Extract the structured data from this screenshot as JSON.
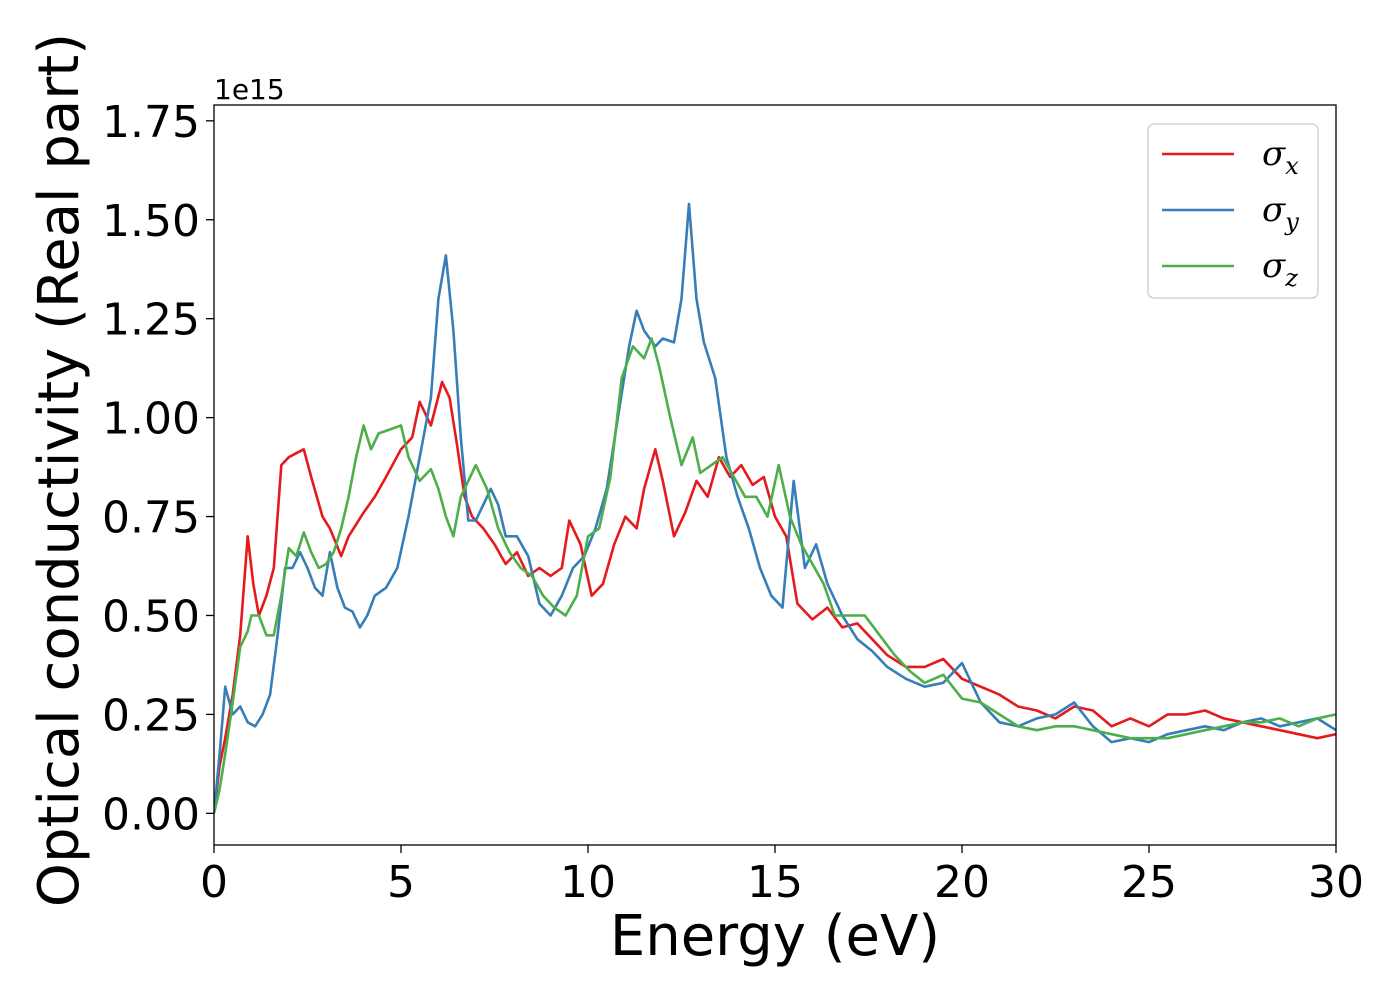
{
  "chart_data": {
    "type": "line",
    "xlabel": "Energy (eV)",
    "ylabel": "Optical conductivity (Real part)",
    "y_offset_text": "1e15",
    "xlim": [
      0,
      30
    ],
    "ylim": [
      -0.08,
      1.79
    ],
    "xticks": [
      0,
      5,
      10,
      15,
      20,
      25,
      30
    ],
    "xtick_labels": [
      "0",
      "5",
      "10",
      "15",
      "20",
      "25",
      "30"
    ],
    "yticks": [
      0.0,
      0.25,
      0.5,
      0.75,
      1.0,
      1.25,
      1.5,
      1.75
    ],
    "ytick_labels": [
      "0.00",
      "0.25",
      "0.50",
      "0.75",
      "1.00",
      "1.25",
      "1.50",
      "1.75"
    ],
    "grid": false,
    "legend_position": "top-right",
    "series": [
      {
        "name": "σx",
        "legend_base": "σ",
        "legend_sub": "x",
        "color": "#e41a1c",
        "x": [
          0,
          0.15,
          0.3,
          0.5,
          0.7,
          0.9,
          1.05,
          1.2,
          1.4,
          1.6,
          1.8,
          2.0,
          2.2,
          2.4,
          2.6,
          2.9,
          3.1,
          3.4,
          3.6,
          3.8,
          4.0,
          4.3,
          4.6,
          5.0,
          5.3,
          5.5,
          5.8,
          6.1,
          6.3,
          6.5,
          6.7,
          6.9,
          7.2,
          7.5,
          7.8,
          8.1,
          8.4,
          8.7,
          9.0,
          9.3,
          9.5,
          9.8,
          10.1,
          10.4,
          10.7,
          11.0,
          11.3,
          11.5,
          11.8,
          12.0,
          12.3,
          12.6,
          12.9,
          13.2,
          13.5,
          13.8,
          14.1,
          14.4,
          14.7,
          15.0,
          15.3,
          15.6,
          16.0,
          16.4,
          16.8,
          17.2,
          17.6,
          18.0,
          18.5,
          19.0,
          19.5,
          20.0,
          20.5,
          21.0,
          21.5,
          22.0,
          22.5,
          23.0,
          23.5,
          24.0,
          24.5,
          25.0,
          25.5,
          26.0,
          26.5,
          27.0,
          27.5,
          28.0,
          28.5,
          29.0,
          29.5,
          30.0
        ],
        "y": [
          0.0,
          0.12,
          0.19,
          0.3,
          0.45,
          0.7,
          0.58,
          0.5,
          0.55,
          0.62,
          0.88,
          0.9,
          0.91,
          0.92,
          0.85,
          0.75,
          0.72,
          0.65,
          0.7,
          0.73,
          0.76,
          0.8,
          0.85,
          0.92,
          0.95,
          1.04,
          0.98,
          1.09,
          1.05,
          0.93,
          0.8,
          0.75,
          0.72,
          0.68,
          0.63,
          0.66,
          0.6,
          0.62,
          0.6,
          0.62,
          0.74,
          0.68,
          0.55,
          0.58,
          0.68,
          0.75,
          0.72,
          0.82,
          0.92,
          0.84,
          0.7,
          0.76,
          0.84,
          0.8,
          0.9,
          0.85,
          0.88,
          0.83,
          0.85,
          0.75,
          0.7,
          0.53,
          0.49,
          0.52,
          0.47,
          0.48,
          0.44,
          0.4,
          0.37,
          0.37,
          0.39,
          0.34,
          0.32,
          0.3,
          0.27,
          0.26,
          0.24,
          0.27,
          0.26,
          0.22,
          0.24,
          0.22,
          0.25,
          0.25,
          0.26,
          0.24,
          0.23,
          0.22,
          0.21,
          0.2,
          0.19,
          0.2
        ]
      },
      {
        "name": "σy",
        "legend_base": "σ",
        "legend_sub": "y",
        "color": "#377eb8",
        "x": [
          0,
          0.15,
          0.3,
          0.5,
          0.7,
          0.9,
          1.1,
          1.3,
          1.5,
          1.7,
          1.9,
          2.1,
          2.3,
          2.5,
          2.7,
          2.9,
          3.1,
          3.3,
          3.5,
          3.7,
          3.9,
          4.1,
          4.3,
          4.6,
          4.9,
          5.2,
          5.5,
          5.8,
          6.0,
          6.2,
          6.4,
          6.6,
          6.8,
          7.0,
          7.2,
          7.4,
          7.6,
          7.8,
          8.1,
          8.4,
          8.7,
          9.0,
          9.3,
          9.6,
          9.9,
          10.2,
          10.5,
          10.8,
          11.1,
          11.3,
          11.5,
          11.8,
          12.0,
          12.3,
          12.5,
          12.7,
          12.9,
          13.1,
          13.4,
          13.7,
          14.0,
          14.3,
          14.6,
          14.9,
          15.2,
          15.5,
          15.8,
          16.1,
          16.4,
          16.8,
          17.2,
          17.6,
          18.0,
          18.5,
          19.0,
          19.5,
          20.0,
          20.5,
          21.0,
          21.5,
          22.0,
          22.5,
          23.0,
          23.5,
          24.0,
          24.5,
          25.0,
          25.5,
          26.0,
          26.5,
          27.0,
          27.5,
          28.0,
          28.5,
          29.0,
          29.5,
          30.0
        ],
        "y": [
          0.0,
          0.15,
          0.32,
          0.25,
          0.27,
          0.23,
          0.22,
          0.25,
          0.3,
          0.45,
          0.62,
          0.62,
          0.66,
          0.62,
          0.57,
          0.55,
          0.66,
          0.57,
          0.52,
          0.51,
          0.47,
          0.5,
          0.55,
          0.57,
          0.62,
          0.75,
          0.9,
          1.05,
          1.3,
          1.41,
          1.22,
          0.95,
          0.74,
          0.74,
          0.78,
          0.82,
          0.78,
          0.7,
          0.7,
          0.65,
          0.53,
          0.5,
          0.55,
          0.62,
          0.65,
          0.72,
          0.82,
          1.0,
          1.18,
          1.27,
          1.22,
          1.18,
          1.2,
          1.19,
          1.3,
          1.54,
          1.3,
          1.19,
          1.1,
          0.9,
          0.8,
          0.72,
          0.62,
          0.55,
          0.52,
          0.84,
          0.62,
          0.68,
          0.58,
          0.5,
          0.44,
          0.41,
          0.37,
          0.34,
          0.32,
          0.33,
          0.38,
          0.28,
          0.23,
          0.22,
          0.24,
          0.25,
          0.28,
          0.22,
          0.18,
          0.19,
          0.18,
          0.2,
          0.21,
          0.22,
          0.21,
          0.23,
          0.24,
          0.22,
          0.23,
          0.24,
          0.21
        ]
      },
      {
        "name": "σz",
        "legend_base": "σ",
        "legend_sub": "z",
        "color": "#4daf4a",
        "x": [
          0,
          0.15,
          0.3,
          0.5,
          0.7,
          0.9,
          1.0,
          1.2,
          1.4,
          1.6,
          1.8,
          2.0,
          2.2,
          2.4,
          2.6,
          2.8,
          3.0,
          3.2,
          3.4,
          3.6,
          3.8,
          4.0,
          4.2,
          4.4,
          4.7,
          5.0,
          5.2,
          5.5,
          5.8,
          6.0,
          6.2,
          6.4,
          6.6,
          6.8,
          7.0,
          7.3,
          7.6,
          7.9,
          8.2,
          8.5,
          8.8,
          9.1,
          9.4,
          9.7,
          10.0,
          10.3,
          10.6,
          10.9,
          11.2,
          11.5,
          11.7,
          11.9,
          12.2,
          12.5,
          12.8,
          13.0,
          13.3,
          13.6,
          13.9,
          14.2,
          14.5,
          14.8,
          15.1,
          15.4,
          15.7,
          16.0,
          16.3,
          16.6,
          17.0,
          17.4,
          17.8,
          18.2,
          18.6,
          19.0,
          19.5,
          20.0,
          20.5,
          21.0,
          21.5,
          22.0,
          22.5,
          23.0,
          23.5,
          24.0,
          24.5,
          25.0,
          25.5,
          26.0,
          26.5,
          27.0,
          27.5,
          28.0,
          28.5,
          29.0,
          29.5,
          30.0
        ],
        "y": [
          0.0,
          0.06,
          0.15,
          0.28,
          0.42,
          0.46,
          0.5,
          0.5,
          0.45,
          0.45,
          0.55,
          0.67,
          0.65,
          0.71,
          0.66,
          0.62,
          0.63,
          0.66,
          0.72,
          0.8,
          0.9,
          0.98,
          0.92,
          0.96,
          0.97,
          0.98,
          0.9,
          0.84,
          0.87,
          0.82,
          0.75,
          0.7,
          0.8,
          0.84,
          0.88,
          0.82,
          0.72,
          0.66,
          0.62,
          0.6,
          0.55,
          0.52,
          0.5,
          0.55,
          0.7,
          0.72,
          0.85,
          1.1,
          1.18,
          1.15,
          1.2,
          1.13,
          1.0,
          0.88,
          0.95,
          0.86,
          0.88,
          0.9,
          0.85,
          0.8,
          0.8,
          0.75,
          0.88,
          0.75,
          0.68,
          0.63,
          0.58,
          0.5,
          0.5,
          0.5,
          0.45,
          0.4,
          0.36,
          0.33,
          0.35,
          0.29,
          0.28,
          0.25,
          0.22,
          0.21,
          0.22,
          0.22,
          0.21,
          0.2,
          0.19,
          0.19,
          0.19,
          0.2,
          0.21,
          0.22,
          0.23,
          0.23,
          0.24,
          0.22,
          0.24,
          0.25
        ]
      }
    ]
  }
}
